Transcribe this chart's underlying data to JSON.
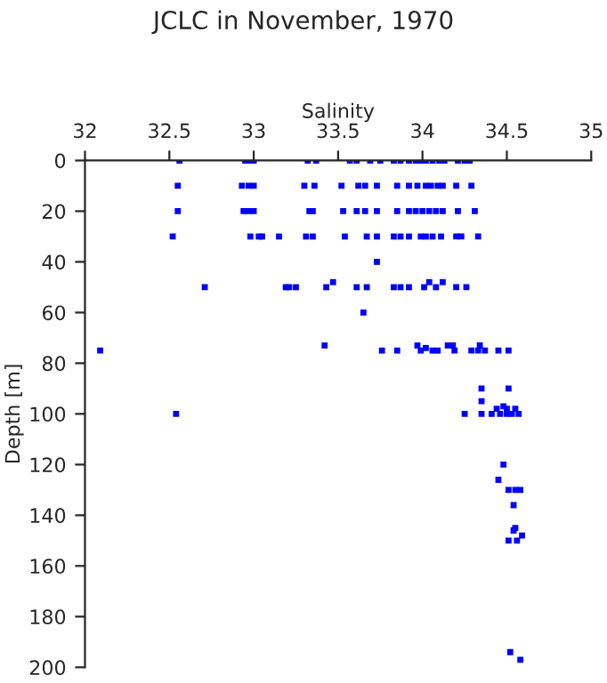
{
  "chart_data": {
    "type": "scatter",
    "title": "JCLC in November, 1970",
    "xlabel": "Salinity",
    "ylabel": "Depth [m]",
    "xlim": [
      32,
      35
    ],
    "xticks": [
      32,
      32.5,
      33,
      33.5,
      34,
      34.5,
      35
    ],
    "ylim": [
      200,
      0
    ],
    "yticks": [
      0,
      20,
      40,
      60,
      80,
      100,
      120,
      140,
      160,
      180,
      200
    ],
    "grid": false,
    "marker": "square",
    "series": [
      {
        "color": "#0000ff",
        "x": [
          32.56,
          32.95,
          32.97,
          33.0,
          33.32,
          33.37,
          33.57,
          33.61,
          33.69,
          33.75,
          33.83,
          33.87,
          33.92,
          33.96,
          33.99,
          34.02,
          34.06,
          34.1,
          34.13,
          34.21,
          34.25,
          34.28,
          32.55,
          32.93,
          32.97,
          33.0,
          33.3,
          33.36,
          33.52,
          33.62,
          33.66,
          33.73,
          33.85,
          33.92,
          33.97,
          34.02,
          34.05,
          34.09,
          34.12,
          34.2,
          34.29,
          32.55,
          32.94,
          32.97,
          33.0,
          33.33,
          33.35,
          33.53,
          33.61,
          33.66,
          33.73,
          33.85,
          33.92,
          33.96,
          34.0,
          34.04,
          34.08,
          34.12,
          34.21,
          34.31,
          32.52,
          32.98,
          33.03,
          33.05,
          33.15,
          33.31,
          33.35,
          33.54,
          33.67,
          33.73,
          33.83,
          33.87,
          33.92,
          33.99,
          34.02,
          34.06,
          34.11,
          34.2,
          34.23,
          34.33,
          33.73,
          32.71,
          33.19,
          33.21,
          33.25,
          33.43,
          33.47,
          33.61,
          33.67,
          33.83,
          33.87,
          33.92,
          34.01,
          34.04,
          34.08,
          34.12,
          34.2,
          34.26,
          33.65,
          32.09,
          33.42,
          33.76,
          33.85,
          33.97,
          33.99,
          34.02,
          34.06,
          34.09,
          34.15,
          34.18,
          34.19,
          34.29,
          34.33,
          34.34,
          34.37,
          34.45,
          34.51,
          34.35,
          34.51,
          34.35,
          34.48,
          34.44,
          34.5,
          34.55,
          32.54,
          34.25,
          34.35,
          34.41,
          34.46,
          34.5,
          34.53,
          34.57,
          34.48,
          34.45,
          34.51,
          34.55,
          34.58,
          34.54,
          34.55,
          34.54,
          34.59,
          34.51,
          34.56,
          34.52,
          34.58
        ],
        "values": [
          0,
          0,
          0,
          0,
          0,
          0,
          0,
          0,
          0,
          0,
          0,
          0,
          0,
          0,
          0,
          0,
          0,
          0,
          0,
          0,
          0,
          0,
          10,
          10,
          10,
          10,
          10,
          10,
          10,
          10,
          10,
          10,
          10,
          10,
          10,
          10,
          10,
          10,
          10,
          10,
          10,
          20,
          20,
          20,
          20,
          20,
          20,
          20,
          20,
          20,
          20,
          20,
          20,
          20,
          20,
          20,
          20,
          20,
          20,
          20,
          30,
          30,
          30,
          30,
          30,
          30,
          30,
          30,
          30,
          30,
          30,
          30,
          30,
          30,
          30,
          30,
          30,
          30,
          30,
          30,
          40,
          50,
          50,
          50,
          50,
          50,
          48,
          50,
          50,
          50,
          50,
          50,
          50,
          48,
          50,
          48,
          50,
          50,
          60,
          75,
          73,
          75,
          75,
          73,
          75,
          74,
          75,
          75,
          73,
          73,
          75,
          75,
          75,
          73,
          75,
          75,
          75,
          90,
          90,
          95,
          97,
          98,
          98,
          98,
          100,
          100,
          100,
          100,
          100,
          100,
          100,
          100,
          120,
          126,
          130,
          130,
          130,
          136,
          145,
          146,
          148,
          150,
          150,
          194,
          197
        ]
      }
    ]
  }
}
